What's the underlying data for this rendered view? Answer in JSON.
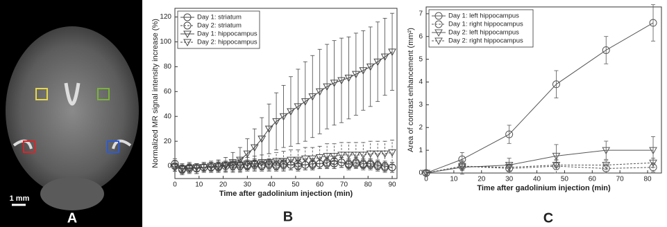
{
  "image_panel": {
    "label": "A",
    "scale_bar": "1 mm"
  },
  "chart_data": [
    {
      "type": "line",
      "panel_label": "B",
      "xlabel": "Time after gadolinium injection (min)",
      "ylabel": "Normalized MR signal intensity increase (%)",
      "xlim": [
        0,
        92
      ],
      "xticks": [
        0,
        10,
        20,
        30,
        40,
        50,
        60,
        70,
        80,
        90
      ],
      "ylim": [
        -10,
        127
      ],
      "yticks": [
        0,
        20,
        40,
        60,
        80,
        100,
        120
      ],
      "legend": "upper-left",
      "x": [
        0,
        3,
        6,
        9,
        12,
        15,
        18,
        21,
        24,
        27,
        30,
        33,
        36,
        39,
        42,
        45,
        48,
        51,
        54,
        57,
        60,
        63,
        66,
        69,
        72,
        75,
        78,
        81,
        84,
        87,
        90
      ],
      "series": [
        {
          "name": "Day 1: striatum",
          "color": "#444444",
          "marker": "circle",
          "line_style": "solid",
          "values": [
            2,
            -2,
            -1,
            -2,
            -1,
            -1,
            0,
            0,
            1,
            1,
            1,
            2,
            1,
            2,
            1,
            2,
            1,
            2,
            1,
            2,
            2,
            3,
            4,
            3,
            2,
            3,
            2,
            2,
            1,
            0,
            -1
          ],
          "errors": [
            4,
            4,
            4,
            4,
            4,
            4,
            4,
            4,
            4,
            4,
            4,
            4,
            4,
            4,
            4,
            4,
            4,
            4,
            4,
            4,
            4,
            4,
            4,
            4,
            4,
            4,
            4,
            4,
            4,
            4,
            4
          ]
        },
        {
          "name": "Day 2: striatum",
          "color": "#444444",
          "marker": "circle",
          "line_style": "dashed",
          "values": [
            0,
            -3,
            -2,
            -2,
            -1,
            -1,
            -1,
            0,
            0,
            0,
            0,
            1,
            0,
            1,
            0,
            1,
            1,
            0,
            1,
            1,
            2,
            2,
            2,
            3,
            1,
            2,
            1,
            1,
            0,
            -1,
            -1
          ],
          "errors": [
            4,
            4,
            4,
            4,
            4,
            4,
            4,
            4,
            4,
            4,
            4,
            4,
            4,
            4,
            4,
            4,
            4,
            4,
            4,
            4,
            4,
            4,
            4,
            4,
            4,
            4,
            4,
            4,
            4,
            4,
            4
          ]
        },
        {
          "name": "Day 1: hippocampus",
          "color": "#444444",
          "marker": "triangle-down",
          "line_style": "solid",
          "values": [
            -1,
            -2,
            -2,
            -1,
            -1,
            0,
            0,
            1,
            3,
            5,
            10,
            15,
            22,
            30,
            36,
            40,
            44,
            48,
            52,
            56,
            60,
            64,
            67,
            69,
            71,
            74,
            77,
            80,
            84,
            88,
            92
          ],
          "errors": [
            3,
            3,
            3,
            3,
            3,
            4,
            5,
            6,
            8,
            10,
            12,
            15,
            17,
            20,
            23,
            25,
            28,
            30,
            32,
            33,
            34,
            34,
            34,
            34,
            33,
            33,
            32,
            32,
            32,
            31,
            31
          ]
        },
        {
          "name": "Day 2: hippocampus",
          "color": "#444444",
          "marker": "triangle-down",
          "line_style": "dashed",
          "values": [
            -1,
            -2,
            -2,
            -1,
            -1,
            0,
            0,
            0,
            1,
            1,
            2,
            2,
            3,
            3,
            4,
            4,
            5,
            5,
            6,
            6,
            7,
            8,
            8,
            9,
            9,
            9,
            9,
            10,
            10,
            10,
            11
          ],
          "errors": [
            3,
            3,
            3,
            3,
            3,
            3,
            3,
            4,
            4,
            5,
            5,
            6,
            6,
            7,
            7,
            8,
            8,
            8,
            9,
            9,
            9,
            10,
            10,
            10,
            10,
            10,
            10,
            10,
            10,
            10,
            10
          ]
        }
      ]
    },
    {
      "type": "line",
      "panel_label": "C",
      "xlabel": "Time after gadolinium injection (min)",
      "ylabel": "Area of contrast enhancement (mm²)",
      "xlim": [
        0,
        85
      ],
      "xticks": [
        0,
        10,
        20,
        30,
        40,
        50,
        60,
        70,
        80
      ],
      "ylim": [
        0,
        7.3
      ],
      "yticks": [
        0,
        1,
        2,
        3,
        4,
        5,
        6,
        7
      ],
      "legend": "upper-left",
      "x": [
        0,
        13,
        30,
        47,
        65,
        82
      ],
      "series": [
        {
          "name": "Day 1: left hippocampus",
          "color": "#555555",
          "marker": "circle",
          "line_style": "solid",
          "values": [
            0,
            0.6,
            1.7,
            3.9,
            5.4,
            6.6
          ],
          "errors": [
            0.1,
            0.3,
            0.4,
            0.6,
            0.6,
            0.8
          ]
        },
        {
          "name": "Day 1: right hippocampus",
          "color": "#555555",
          "marker": "circle",
          "line_style": "dashed",
          "values": [
            0,
            0.3,
            0.2,
            0.3,
            0.2,
            0.25
          ],
          "errors": [
            0.05,
            0.2,
            0.2,
            0.3,
            0.2,
            0.2
          ]
        },
        {
          "name": "Day 2: left hippocampus",
          "color": "#555555",
          "marker": "triangle-down",
          "line_style": "solid",
          "values": [
            0,
            0.25,
            0.35,
            0.75,
            1.0,
            1.0
          ],
          "errors": [
            0.05,
            0.3,
            0.3,
            0.5,
            0.4,
            0.6
          ]
        },
        {
          "name": "Day 2: right hippocampus",
          "color": "#555555",
          "marker": "triangle-down",
          "line_style": "dashed",
          "values": [
            0,
            0.3,
            0.25,
            0.35,
            0.35,
            0.45
          ],
          "errors": [
            0.05,
            0.15,
            0.15,
            0.2,
            0.2,
            0.2
          ]
        }
      ]
    }
  ]
}
